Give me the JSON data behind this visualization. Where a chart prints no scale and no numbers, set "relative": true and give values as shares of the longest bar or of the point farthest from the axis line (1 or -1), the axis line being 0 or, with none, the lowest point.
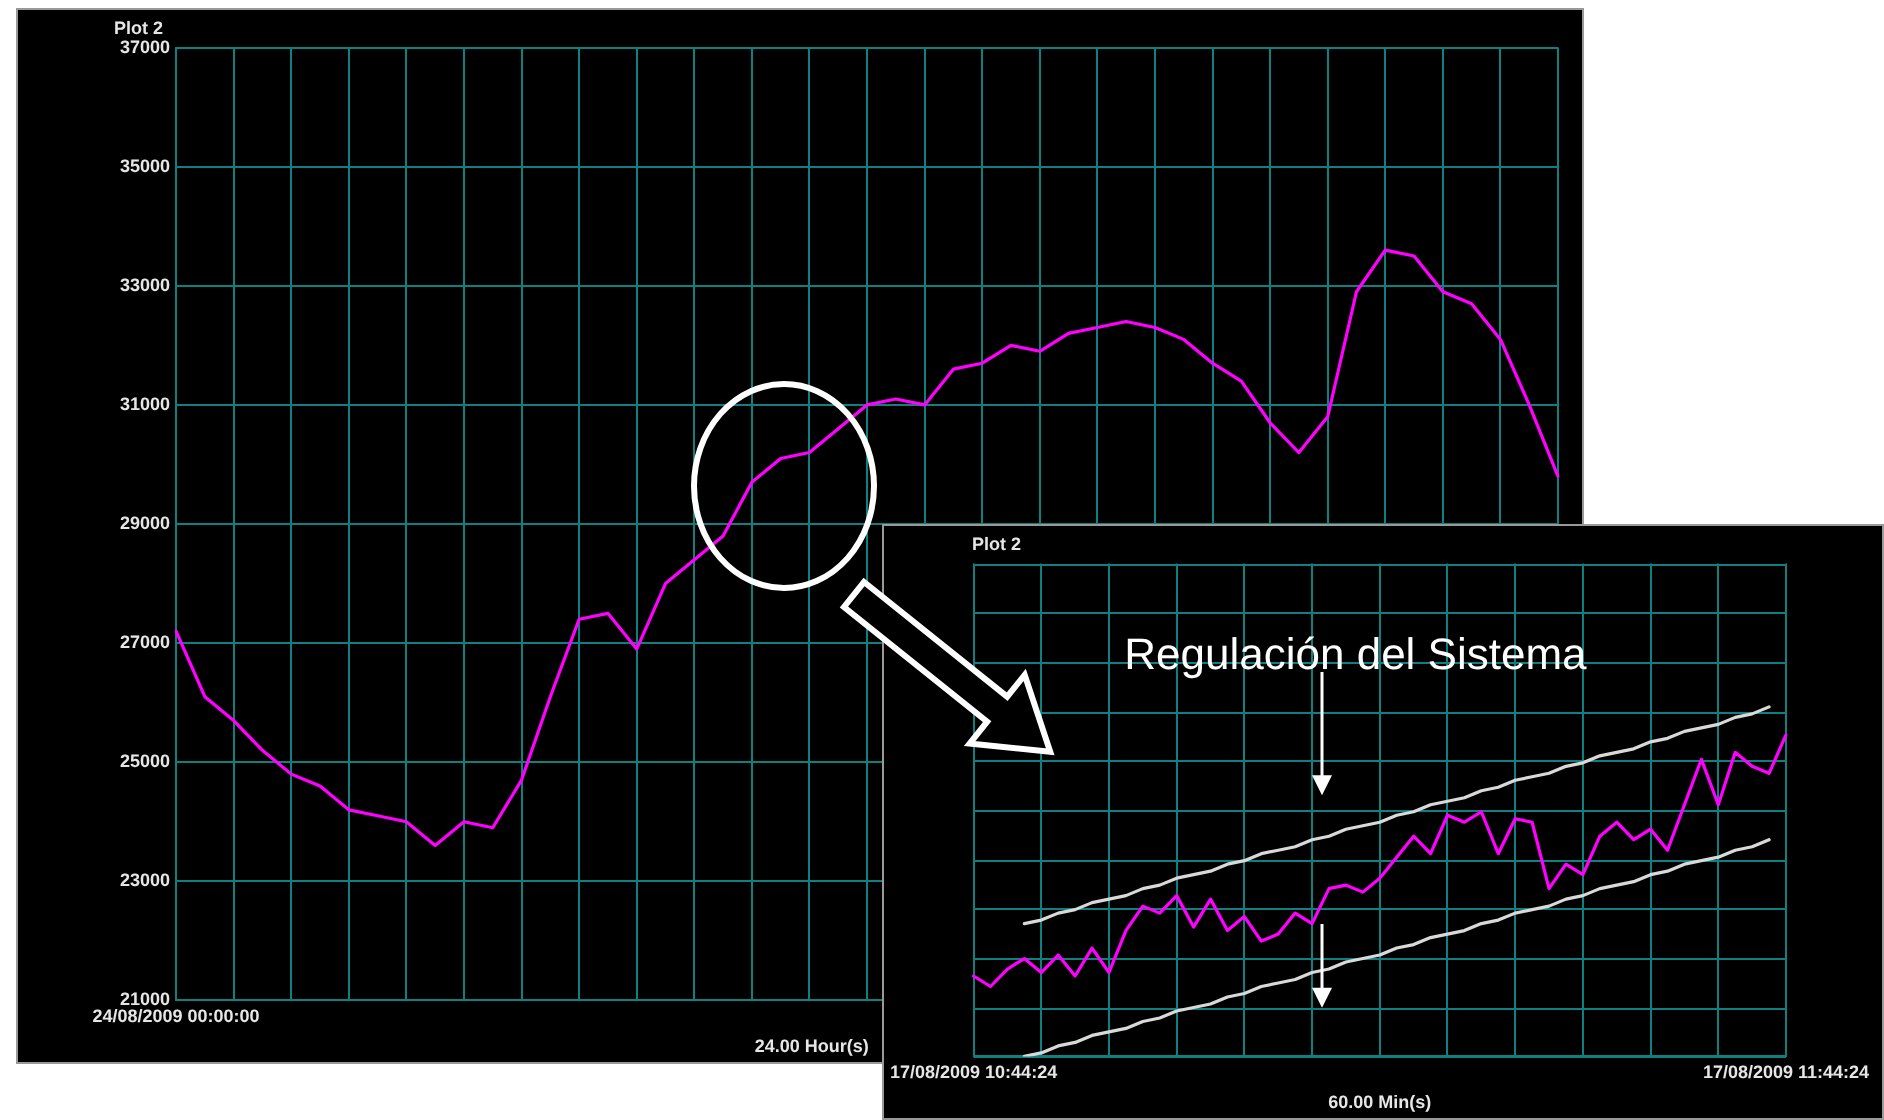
{
  "chart_data": [
    {
      "type": "line",
      "title": "Plot 2",
      "xlabel": "24.00 Hour(s)",
      "categories": [
        "24/08/2009 00:00:00",
        null,
        null,
        null,
        null,
        null,
        null,
        null,
        null,
        null,
        null,
        null,
        null,
        null,
        null,
        null,
        null,
        null,
        null,
        null,
        null,
        null,
        null,
        null,
        null,
        null,
        null,
        null,
        null,
        null,
        null,
        null,
        null,
        null,
        null,
        null,
        null,
        null,
        null,
        null,
        null,
        null,
        null,
        null,
        null,
        null,
        null,
        null,
        null
      ],
      "series": [
        {
          "color": "#ff00ff",
          "values": [
            27200,
            26100,
            25700,
            25200,
            24800,
            24600,
            24200,
            24100,
            24000,
            23600,
            24000,
            23900,
            24700,
            26100,
            27400,
            27500,
            26900,
            28000,
            28400,
            28800,
            29700,
            30100,
            30200,
            30600,
            31000,
            31100,
            31000,
            31600,
            31700,
            32000,
            31900,
            32200,
            32300,
            32400,
            32300,
            32100,
            31700,
            31400,
            30700,
            30200,
            30800,
            32900,
            33600,
            33500,
            32900,
            32700,
            32100,
            31000,
            29800
          ]
        }
      ],
      "ylim": [
        21000,
        37000
      ],
      "yticks": [
        21000,
        23000,
        25000,
        27000,
        29000,
        31000,
        33000,
        35000,
        37000
      ],
      "grid": true
    },
    {
      "type": "line",
      "title": "Plot 2",
      "xlabel": "60.00 Min(s)",
      "relative": true,
      "annotations": [
        "Regulación del Sistema"
      ],
      "categories": [
        "17/08/2009 10:44:24",
        null,
        null,
        null,
        null,
        null,
        null,
        null,
        null,
        null,
        null,
        null,
        null,
        null,
        null,
        null,
        null,
        null,
        null,
        null,
        null,
        null,
        null,
        null,
        null,
        null,
        null,
        null,
        null,
        null,
        null,
        null,
        null,
        null,
        null,
        null,
        null,
        null,
        null,
        null,
        null,
        null,
        null,
        null,
        null,
        null,
        null,
        null,
        "17/08/2009 11:44:24"
      ],
      "series": [
        {
          "color": "#ff00ff",
          "values": [
            0.23,
            0.2,
            0.25,
            0.28,
            0.24,
            0.29,
            0.23,
            0.31,
            0.24,
            0.36,
            0.43,
            0.41,
            0.46,
            0.37,
            0.45,
            0.36,
            0.4,
            0.33,
            0.35,
            0.41,
            0.38,
            0.48,
            0.49,
            0.47,
            0.51,
            0.57,
            0.63,
            0.58,
            0.69,
            0.67,
            0.7,
            0.58,
            0.68,
            0.67,
            0.48,
            0.55,
            0.52,
            0.63,
            0.67,
            0.62,
            0.65,
            0.59,
            0.72,
            0.85,
            0.72,
            0.87,
            0.83,
            0.81,
            0.92
          ]
        },
        {
          "type": "line",
          "color": "#d9d9d9",
          "values": [
            null,
            null,
            null,
            0.38,
            0.39,
            0.41,
            0.42,
            0.44,
            0.45,
            0.46,
            0.48,
            0.49,
            0.51,
            0.52,
            0.53,
            0.55,
            0.56,
            0.58,
            0.59,
            0.6,
            0.62,
            0.63,
            0.65,
            0.66,
            0.67,
            0.69,
            0.7,
            0.72,
            0.73,
            0.74,
            0.76,
            0.77,
            0.79,
            0.8,
            0.81,
            0.83,
            0.84,
            0.86,
            0.87,
            0.88,
            0.9,
            0.91,
            0.93,
            0.94,
            0.95,
            0.97,
            0.98,
            1,
            null
          ]
        },
        {
          "type": "line",
          "color": "#d9d9d9",
          "values": [
            null,
            null,
            null,
            0,
            0.01,
            0.03,
            0.04,
            0.06,
            0.07,
            0.08,
            0.1,
            0.11,
            0.13,
            0.14,
            0.15,
            0.17,
            0.18,
            0.2,
            0.21,
            0.22,
            0.24,
            0.25,
            0.27,
            0.28,
            0.29,
            0.31,
            0.32,
            0.34,
            0.35,
            0.36,
            0.38,
            0.39,
            0.41,
            0.42,
            0.43,
            0.45,
            0.46,
            0.48,
            0.49,
            0.5,
            0.52,
            0.53,
            0.55,
            0.56,
            0.57,
            0.59,
            0.6,
            0.62,
            null
          ]
        }
      ],
      "grid": true
    }
  ]
}
